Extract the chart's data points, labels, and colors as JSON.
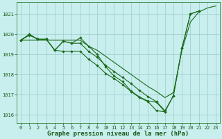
{
  "title": "Graphe pression niveau de la mer (hPa)",
  "x_hours": [
    0,
    1,
    2,
    3,
    4,
    5,
    6,
    7,
    8,
    9,
    10,
    11,
    12,
    13,
    14,
    15,
    16,
    17,
    18,
    19,
    20,
    21,
    22,
    23
  ],
  "line_smooth": [
    1019.7,
    1019.7,
    1019.7,
    1019.7,
    1019.7,
    1019.7,
    1019.7,
    1019.7,
    1019.4,
    1019.2,
    1018.9,
    1018.6,
    1018.3,
    1018.0,
    1017.7,
    1017.4,
    1017.15,
    1016.85,
    1017.1,
    1019.2,
    1020.6,
    1021.1,
    1021.3,
    1021.4
  ],
  "line1": [
    1019.7,
    1020.0,
    1019.75,
    1019.75,
    1019.2,
    1019.15,
    1019.15,
    1019.15,
    1018.75,
    1018.45,
    1018.05,
    1017.8,
    1017.5,
    1017.15,
    1016.85,
    1016.65,
    1016.2,
    1016.15,
    null,
    null,
    null,
    null,
    null,
    null
  ],
  "line2": [
    1019.7,
    1019.95,
    1019.75,
    1019.75,
    1019.2,
    1019.65,
    1019.55,
    1019.55,
    1019.15,
    1018.85,
    1018.45,
    1018.15,
    1017.85,
    1017.55,
    1017.2,
    1016.9,
    1016.65,
    1016.2,
    1016.95,
    1019.3,
    1021.0,
    1021.15,
    null,
    null
  ],
  "line3": [
    1019.7,
    1019.97,
    1019.75,
    1019.75,
    1019.2,
    1019.65,
    1019.55,
    1019.82,
    1019.4,
    1019.0,
    1018.38,
    1017.92,
    1017.65,
    1017.18,
    1016.88,
    1016.68,
    1016.62,
    1016.15,
    1016.95,
    1019.3,
    1021.0,
    1021.15,
    null,
    null
  ],
  "line_end": [
    null,
    null,
    null,
    null,
    null,
    null,
    null,
    null,
    null,
    null,
    null,
    null,
    null,
    null,
    null,
    null,
    null,
    null,
    1016.95,
    1019.3,
    1021.0,
    1021.15,
    null,
    null
  ],
  "ylim": [
    1015.6,
    1021.6
  ],
  "yticks": [
    1016,
    1017,
    1018,
    1019,
    1020,
    1021
  ],
  "xlim": [
    -0.5,
    23.5
  ],
  "xticks": [
    0,
    1,
    2,
    3,
    4,
    5,
    6,
    7,
    8,
    9,
    10,
    11,
    12,
    13,
    14,
    15,
    16,
    17,
    18,
    19,
    20,
    21,
    22,
    23
  ],
  "line_color": "#1a6b1a",
  "bg_color": "#c8eeed",
  "grid_color": "#99cccc",
  "text_color": "#1a5c1a",
  "title_fontsize": 6.5,
  "tick_fontsize": 5.0
}
